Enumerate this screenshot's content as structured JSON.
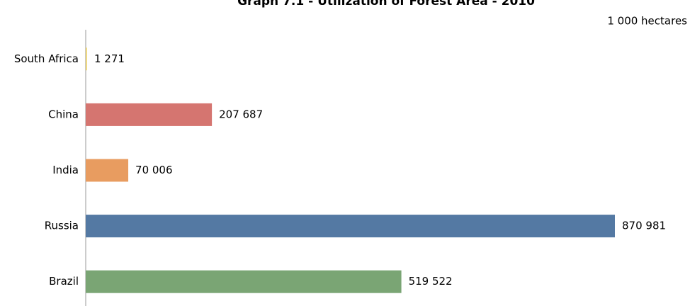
{
  "chart_data": {
    "type": "bar",
    "orientation": "horizontal",
    "title": "Graph 7.1 - Utilization of Forest Area - 2010",
    "unit": "1 000 hectares",
    "categories": [
      "South Africa",
      "China",
      "India",
      "Russia",
      "Brazil"
    ],
    "values": [
      1271,
      207687,
      70006,
      870981,
      519522
    ],
    "value_labels": [
      "1 271",
      "207 687",
      "70 006",
      "870 981",
      "519 522"
    ],
    "colors": [
      "#e8c84a",
      "#d57570",
      "#e89c60",
      "#5479a3",
      "#7aa574"
    ]
  }
}
